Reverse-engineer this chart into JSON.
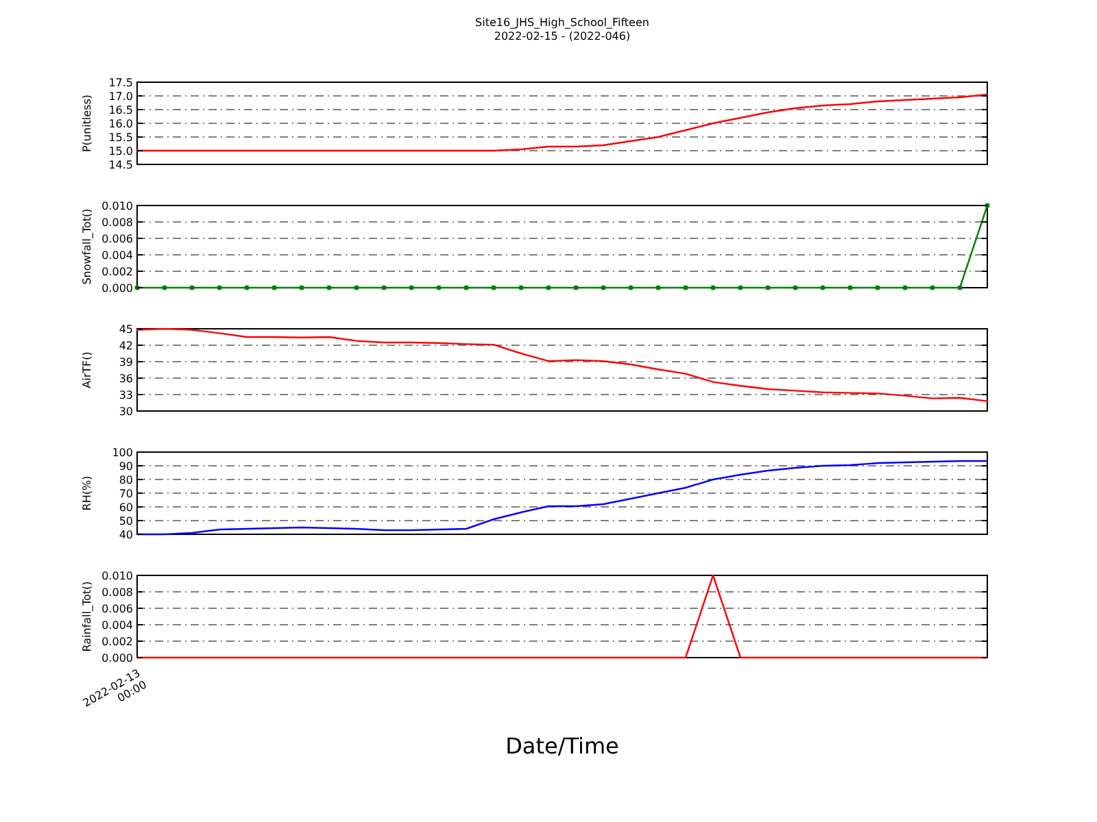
{
  "chart_data": [
    {
      "type": "line",
      "title": "Site16_JHS_High_School_Fifteen",
      "subtitle": "2022-02-15 - (2022-046)",
      "ylabel": "P(unitless)",
      "categories": [
        null,
        null,
        null,
        null,
        null,
        null,
        null,
        null,
        null,
        null,
        null,
        null,
        null,
        null,
        null,
        null,
        null,
        null,
        null,
        null,
        null,
        null,
        null,
        null,
        null,
        null,
        null,
        null,
        null,
        null,
        null,
        null
      ],
      "ylim": [
        14.5,
        17.5
      ],
      "yticks": [
        14.5,
        {
          "value": 15,
          "label": "15.0"
        },
        15.5,
        {
          "value": 16,
          "label": "16.0"
        },
        16.5,
        {
          "value": 17,
          "label": "17.0"
        },
        17.5
      ],
      "grid": "y",
      "tick_labels": "y",
      "line_style": "solid",
      "series": [
        {
          "color": "#ff0000",
          "values": [
            15.0,
            15.0,
            15.0,
            15.0,
            15.0,
            15.0,
            15.0,
            15.0,
            15.0,
            15.0,
            15.0,
            15.0,
            15.0,
            15.0,
            15.05,
            15.15,
            15.15,
            15.2,
            15.35,
            15.5,
            15.75,
            16.0,
            16.2,
            16.4,
            16.55,
            16.65,
            16.7,
            16.8,
            16.85,
            16.9,
            16.95,
            17.05
          ]
        }
      ]
    },
    {
      "type": "line",
      "ylabel": "Snowfall_Tot()",
      "categories": [
        null,
        null,
        null,
        null,
        null,
        null,
        null,
        null,
        null,
        null,
        null,
        null,
        null,
        null,
        null,
        null,
        null,
        null,
        null,
        null,
        null,
        null,
        null,
        null,
        null,
        null,
        null,
        null,
        null,
        null,
        null,
        null
      ],
      "ylim": [
        0,
        0.01
      ],
      "yticks": [
        {
          "value": 0,
          "label": "0.000"
        },
        {
          "value": 0.002,
          "label": "0.002"
        },
        {
          "value": 0.004,
          "label": "0.004"
        },
        {
          "value": 0.006,
          "label": "0.006"
        },
        {
          "value": 0.008,
          "label": "0.008"
        },
        {
          "value": 0.01,
          "label": "0.010"
        }
      ],
      "grid": "y",
      "tick_labels": "y",
      "line_style": "solid",
      "marker": "circle",
      "series": [
        {
          "color": "#008000",
          "values": [
            0,
            0,
            0,
            0,
            0,
            0,
            0,
            0,
            0,
            0,
            0,
            0,
            0,
            0,
            0,
            0,
            0,
            0,
            0,
            0,
            0,
            0,
            0,
            0,
            0,
            0,
            0,
            0,
            0,
            0,
            0,
            0.01
          ]
        }
      ]
    },
    {
      "type": "line",
      "ylabel": "AirTF()",
      "categories": [
        null,
        null,
        null,
        null,
        null,
        null,
        null,
        null,
        null,
        null,
        null,
        null,
        null,
        null,
        null,
        null,
        null,
        null,
        null,
        null,
        null,
        null,
        null,
        null,
        null,
        null,
        null,
        null,
        null,
        null,
        null,
        null
      ],
      "ylim": [
        30,
        45
      ],
      "yticks": [
        30,
        33,
        36,
        39,
        42,
        45
      ],
      "grid": "y",
      "tick_labels": "y",
      "line_style": "solid",
      "series": [
        {
          "color": "#ff0000",
          "values": [
            44.8,
            45.0,
            44.8,
            44.2,
            43.5,
            43.5,
            43.4,
            43.5,
            42.8,
            42.5,
            42.5,
            42.4,
            42.2,
            42.1,
            40.5,
            39.1,
            39.3,
            39.1,
            38.5,
            37.6,
            36.8,
            35.3,
            34.6,
            34.0,
            33.7,
            33.4,
            33.3,
            33.2,
            32.8,
            32.3,
            32.4,
            31.8
          ]
        }
      ]
    },
    {
      "type": "line",
      "ylabel": "RH(%)",
      "categories": [
        null,
        null,
        null,
        null,
        null,
        null,
        null,
        null,
        null,
        null,
        null,
        null,
        null,
        null,
        null,
        null,
        null,
        null,
        null,
        null,
        null,
        null,
        null,
        null,
        null,
        null,
        null,
        null,
        null,
        null,
        null,
        null
      ],
      "ylim": [
        40,
        100
      ],
      "yticks": [
        40,
        50,
        60,
        70,
        80,
        90,
        100
      ],
      "grid": "y",
      "tick_labels": "y",
      "line_style": "solid",
      "series": [
        {
          "color": "#0000ff",
          "values": [
            40,
            40,
            41,
            43.5,
            44,
            44.5,
            45,
            44.5,
            44,
            43,
            43,
            43.5,
            44,
            51,
            56,
            60.5,
            60.5,
            62,
            66,
            70,
            74,
            80,
            83.5,
            86.5,
            88.5,
            90,
            90.5,
            92,
            92.5,
            93,
            93.5,
            93.5
          ]
        }
      ]
    },
    {
      "type": "line",
      "ylabel": "Rainfall_Tot()",
      "xlabel": "Date/Time",
      "categories": [
        "2022-02-13\n00:00",
        null,
        null,
        null,
        null,
        null,
        null,
        null,
        null,
        null,
        null,
        null,
        null,
        null,
        null,
        null,
        null,
        null,
        null,
        null,
        null,
        null,
        null,
        null,
        null,
        null,
        null,
        null,
        null,
        null,
        null,
        null
      ],
      "ylim": [
        0,
        0.01
      ],
      "yticks": [
        {
          "value": 0,
          "label": "0.000"
        },
        {
          "value": 0.002,
          "label": "0.002"
        },
        {
          "value": 0.004,
          "label": "0.004"
        },
        {
          "value": 0.006,
          "label": "0.006"
        },
        {
          "value": 0.008,
          "label": "0.008"
        },
        {
          "value": 0.01,
          "label": "0.010"
        }
      ],
      "grid": "y",
      "line_style": "solid",
      "series": [
        {
          "color": "#ff0000",
          "values": [
            0,
            0,
            0,
            0,
            0,
            0,
            0,
            0,
            0,
            0,
            0,
            0,
            0,
            0,
            0,
            0,
            0,
            0,
            0,
            0,
            0,
            0.01,
            0,
            0,
            0,
            0,
            0,
            0,
            0,
            0,
            0,
            0
          ]
        }
      ]
    }
  ]
}
